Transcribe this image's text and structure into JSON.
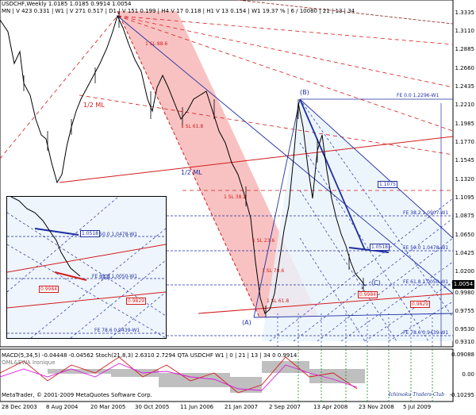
{
  "header": {
    "line1": "USDCHF,Weekly  1.0185 1.0185 0.9914 1.0054",
    "line2": "MN | V 423  0.331 | W1 | V 271  0.517 | D1 | V 151  0.199 | H4 V 17  0.118 | H1 V 13  0.154 | W1 19.37 % | 6 / 10080 | 21 | 13 | 34"
  },
  "price_axis": [
    "1.3335",
    "1.3110",
    "1.2885",
    "1.2660",
    "1.2435",
    "1.2210",
    "1.1985",
    "1.1770",
    "1.1545",
    "1.1320",
    "1.1095",
    "1.0875",
    "1.0650",
    "1.0425",
    "1.0200",
    "0.9980",
    "0.9755",
    "0.9530",
    "0.9310"
  ],
  "current_price": "1.0054",
  "time_axis": [
    "28 Dec 2003",
    "8 Aug 2004",
    "20 Mar 2005",
    "30 Oct 2005",
    "11 Jun 2006",
    "21 Jan 2007",
    "2 Sep 2007",
    "13 Apr 2008",
    "23 Nov 2008",
    "5 Jul 2009"
  ],
  "annotations": {
    "ml_left": "1/2 ML",
    "ml_mid": "1/2 ML",
    "fe_0": "FE 0.0 1.2296-W1",
    "fe_38": "FE 38.2 1.0907-W1",
    "fe_50": "FE 50.0 1.0478-W1",
    "fe_61": "FE 61.8 1.0050-W1",
    "fe_78": "FE 78.6 0.9439-W1",
    "box_1": "1.1075",
    "box_2": "1.0518",
    "box_3": "0.9984",
    "box_4": "0.9829",
    "pt_a": "(A)",
    "pt_b": "(B)",
    "pt_c": "(C)",
    "sl_1": "1 SL 88.6",
    "sl_2": "1 SL 61.8",
    "sl_3": "1 SL 38.2",
    "sl_4": "1 SL 23.6",
    "sl_5": "1 SL 78.6",
    "sl_6": "1 SL 61.8"
  },
  "inset": {
    "fe_50": "FE 50.0 1.0478-W1",
    "fe_61": "FE 61.8 1.0050-W1",
    "fe_78": "FE 78.6 0.9439-W1",
    "box_1": "1.0518",
    "box_2": "0.9984",
    "box_3": "0.9829",
    "pt_c": "(C)"
  },
  "indicator": {
    "header": "MACD(5,34,5)  -0.04448 -0.04562  Stoch(21,8,3)  2.6310 2.7294  QTA USDCHF W1 | 0 | 21 | 13 | 34  0 0.9914",
    "sub": "OML&EWA Ironique",
    "axis": [
      "0.09088",
      "0.00",
      "-0.10295"
    ]
  },
  "footer": {
    "copyright": "MetaTrader, © 2001-2009 MetaQuotes Software Corp.",
    "signature": "Ichimoku Traders Club"
  },
  "colors": {
    "pink_zone": "#f7a8a8",
    "blue_lines": "#1f2fa3",
    "red_lines": "#d21c1c"
  }
}
